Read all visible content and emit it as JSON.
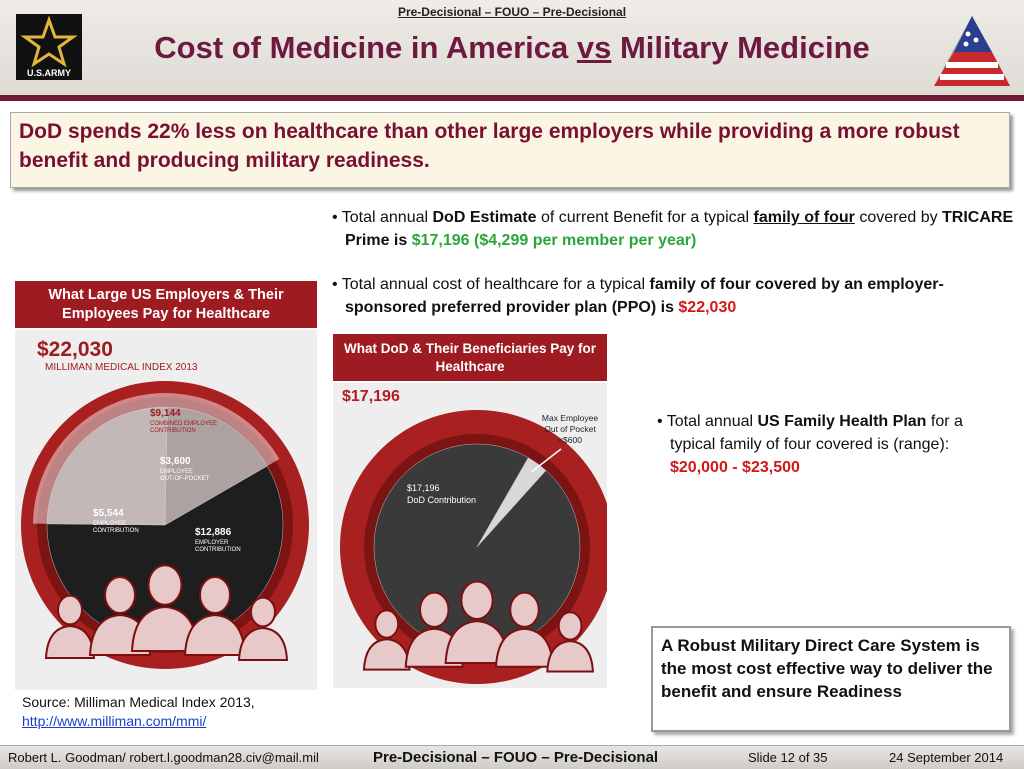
{
  "header": {
    "classification": "Pre-Decisional – FOUO – Pre-Decisional",
    "title_runs": [
      "Cost of Medicine in America ",
      "vs",
      " Military Medicine"
    ],
    "logo_text": "U.S.ARMY"
  },
  "callout": "DoD spends 22% less on healthcare than other large employers while providing a more robust benefit and producing military readiness.",
  "bullets": [
    {
      "runs": [
        "Total annual ",
        "DoD Estimate",
        " of current Benefit for a typical ",
        "family of four",
        " covered by ",
        "TRICARE Prime is ",
        "$17,196 ($4,299 per member per year)"
      ]
    },
    {
      "runs": [
        "Total annual cost of healthcare for a typical ",
        "family of four covered by an employer-sponsored preferred provider plan (PPO) is ",
        "$22,030"
      ]
    },
    {
      "runs": [
        "Total annual ",
        "US Family Health Plan",
        " for a typical family of four covered is (range): ",
        "$20,000 - $23,500"
      ]
    }
  ],
  "employer_panel": {
    "heading": "What Large US Employers & Their Employees Pay for Healthcare",
    "chart": {
      "type": "pie",
      "total": {
        "value": 22030,
        "label": "$22,030"
      },
      "subtitle": "MILLIMAN MEDICAL INDEX 2013",
      "segments": [
        {
          "name": [
            "EMPLOYER",
            "CONTRIBUTION"
          ],
          "value": 12886,
          "label": "$12,886",
          "color": "#1e1e1e"
        },
        {
          "name": [
            "EMPLOYEE",
            "CONTRIBUTION"
          ],
          "value": 5544,
          "label": "$5,544",
          "color": "#8a8a8a"
        },
        {
          "name": [
            "EMPLOYEE",
            "OUT-OF-POCKET"
          ],
          "value": 3600,
          "label": "$3,600",
          "color": "#5a5a5a"
        }
      ],
      "combined": {
        "name": [
          "COMBINED EMPLOYEE",
          "CONTRIBUTION"
        ],
        "value": 9144,
        "label": "$9,144",
        "color": "#f3dcdc"
      }
    }
  },
  "dod_panel": {
    "heading": "What DoD & Their Beneficiaries Pay for Healthcare",
    "total": {
      "value": 17196,
      "label": "$17,196"
    },
    "chart": {
      "type": "pie",
      "segments": [
        {
          "name": [
            "DoD Contribution"
          ],
          "value": 17196,
          "label": "$17,196",
          "color": "#3a3a3a"
        },
        {
          "name": [
            "Max Employee",
            "Out of Pocket"
          ],
          "value": 600,
          "label": "<$600",
          "color": "#d8d8d8"
        }
      ]
    }
  },
  "source": {
    "text": "Source: Milliman Medical Index 2013,",
    "link": "http://www.milliman.com/mmi/"
  },
  "conclusion": "A Robust Military Direct Care System is the most cost effective way to deliver the benefit and ensure Readiness",
  "footer": {
    "author": "Robert L. Goodman/ robert.l.goodman28.civ@mail.mil",
    "classification": "Pre-Decisional – FOUO – Pre-Decisional",
    "slide": "Slide 12 of 35",
    "date": "24 September 2014"
  }
}
